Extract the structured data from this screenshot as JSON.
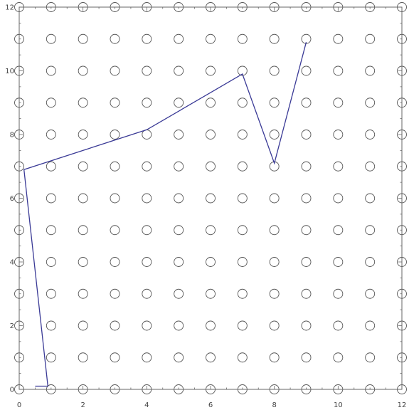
{
  "chart_data": {
    "type": "scatter",
    "title": "",
    "xlabel": "",
    "ylabel": "",
    "xlim": [
      0,
      12
    ],
    "ylim": [
      0,
      12
    ],
    "x_ticks": [
      0,
      2,
      4,
      6,
      8,
      10,
      12
    ],
    "y_ticks": [
      0,
      2,
      4,
      6,
      8,
      10,
      12
    ],
    "x_tick_labels": [
      "0",
      "2",
      "4",
      "6",
      "8",
      "10",
      "12"
    ],
    "y_tick_labels": [
      "0",
      "2",
      "4",
      "6",
      "8",
      "10",
      "12"
    ],
    "grid": false,
    "frame": true,
    "colors": {
      "frame": "#666666",
      "circles": "#555555",
      "path": "#3a3a96",
      "tick_labels": "#444444"
    },
    "series": [
      {
        "type": "scatter",
        "marker": "open-circle",
        "x_values": [
          0,
          1,
          2,
          3,
          4,
          5,
          6,
          7,
          8,
          9,
          10,
          11,
          12
        ],
        "y_values": [
          0,
          1,
          2,
          3,
          4,
          5,
          6,
          7,
          8,
          9,
          10,
          11,
          12
        ]
      },
      {
        "type": "line",
        "points": [
          [
            0.5,
            0.1
          ],
          [
            0.9,
            0.1
          ],
          [
            0.15,
            6.9
          ],
          [
            4.0,
            8.15
          ],
          [
            7.0,
            9.9
          ],
          [
            8.0,
            7.1
          ],
          [
            9.0,
            10.9
          ]
        ]
      }
    ]
  }
}
